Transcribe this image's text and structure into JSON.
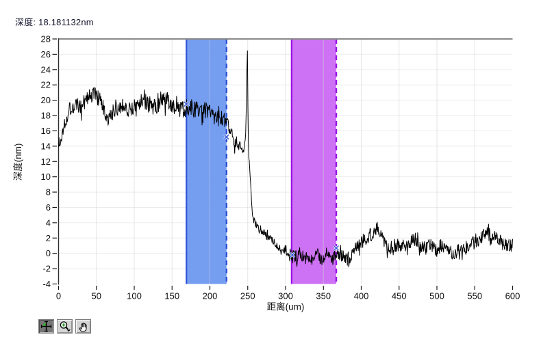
{
  "readout": {
    "label": "深度:",
    "value": "18.181132nm"
  },
  "toolbar": {
    "active_tool": "crosshair-tool",
    "tools": [
      {
        "name": "crosshair-tool"
      },
      {
        "name": "zoom-tool"
      },
      {
        "name": "pan-tool"
      }
    ]
  },
  "chart_data": {
    "type": "line",
    "title": "",
    "xlabel": "距离(um)",
    "ylabel": "深度(nm)",
    "xlim": [
      0,
      600
    ],
    "ylim": [
      -4,
      28
    ],
    "x_tick_step": 50,
    "y_tick_step": 2,
    "grid": true,
    "line_color": "#000000",
    "background": "#ffffff",
    "frame_top_color": "#8a8a8a",
    "frame_left_color": "#2f2f2f",
    "grid_h_color": "#ececec",
    "grid_v_color": "#cfcfcf",
    "tick_color": "#1a1a1a",
    "text_color": "#101010",
    "bands": [
      {
        "name": "blue-band",
        "x1": 169,
        "x2": 222,
        "fill": "#6A97F0",
        "edge": "#2E52D8",
        "left_edge": "solid",
        "right_edge": "dashed"
      },
      {
        "name": "magenta-band",
        "x1": 308,
        "x2": 367,
        "fill": "#CA67F4",
        "edge": "#990FE6",
        "left_edge": "solid",
        "right_edge": "dashed"
      }
    ],
    "cursor_color": "#2E52D8",
    "cursors": [
      {
        "x": 169,
        "y": 19.5
      },
      {
        "x": 222,
        "y": 15.2
      },
      {
        "x": 309,
        "y": -0.2
      },
      {
        "x": 367,
        "y": 0.7
      }
    ],
    "series_spec": {
      "comment": "noisy depth profile; base anchors [x_um, y_nm] + uniform noise",
      "step": 0.6,
      "seed": 1337,
      "spike_prob": 0.07,
      "spike_gain": 1.85,
      "anchors": [
        [
          0,
          14.6
        ],
        [
          2,
          13.9
        ],
        [
          5,
          15.8
        ],
        [
          9,
          17.5
        ],
        [
          14,
          18.8
        ],
        [
          20,
          19.4
        ],
        [
          28,
          19.0
        ],
        [
          35,
          19.8
        ],
        [
          42,
          20.6
        ],
        [
          48,
          20.9
        ],
        [
          52,
          20.3
        ],
        [
          58,
          19.2
        ],
        [
          63,
          17.6
        ],
        [
          66,
          17.0
        ],
        [
          70,
          18.3
        ],
        [
          76,
          19.0
        ],
        [
          82,
          19.4
        ],
        [
          88,
          19.2
        ],
        [
          95,
          18.8
        ],
        [
          100,
          19.0
        ],
        [
          106,
          19.6
        ],
        [
          112,
          19.9
        ],
        [
          118,
          19.6
        ],
        [
          124,
          19.2
        ],
        [
          130,
          19.4
        ],
        [
          136,
          19.7
        ],
        [
          142,
          20.0
        ],
        [
          148,
          19.6
        ],
        [
          154,
          18.9
        ],
        [
          160,
          18.6
        ],
        [
          166,
          18.9
        ],
        [
          172,
          19.2
        ],
        [
          178,
          18.9
        ],
        [
          184,
          18.6
        ],
        [
          190,
          18.9
        ],
        [
          196,
          18.6
        ],
        [
          202,
          18.2
        ],
        [
          208,
          17.9
        ],
        [
          214,
          17.6
        ],
        [
          218,
          17.3
        ],
        [
          222,
          16.7
        ],
        [
          228,
          15.8
        ],
        [
          233,
          14.9
        ],
        [
          238,
          14.2
        ],
        [
          242,
          13.6
        ],
        [
          245,
          13.3
        ],
        [
          247,
          14.5
        ],
        [
          248.5,
          21
        ],
        [
          249.5,
          27.5
        ],
        [
          250.5,
          16
        ],
        [
          252,
          12
        ],
        [
          253.5,
          9.5
        ],
        [
          256,
          5.2
        ],
        [
          260,
          3.8
        ],
        [
          266,
          3.0
        ],
        [
          272,
          2.6
        ],
        [
          280,
          1.9
        ],
        [
          290,
          1.0
        ],
        [
          300,
          0.3
        ],
        [
          306,
          -0.2
        ],
        [
          312,
          -0.5
        ],
        [
          318,
          -0.1
        ],
        [
          324,
          -0.6
        ],
        [
          330,
          -0.2
        ],
        [
          336,
          -0.7
        ],
        [
          342,
          -0.3
        ],
        [
          348,
          -0.6
        ],
        [
          354,
          -0.2
        ],
        [
          360,
          -0.7
        ],
        [
          366,
          -0.4
        ],
        [
          372,
          -0.6
        ],
        [
          378,
          -0.4
        ],
        [
          382,
          -0.8
        ],
        [
          386,
          -0.2
        ],
        [
          390,
          0.3
        ],
        [
          394,
          0.8
        ],
        [
          398,
          1.3
        ],
        [
          402,
          1.6
        ],
        [
          406,
          1.9
        ],
        [
          410,
          2.3
        ],
        [
          414,
          2.6
        ],
        [
          418,
          3.1
        ],
        [
          421,
          3.4
        ],
        [
          424,
          3.0
        ],
        [
          427,
          2.4
        ],
        [
          430,
          1.8
        ],
        [
          434,
          1.2
        ],
        [
          438,
          0.9
        ],
        [
          442,
          0.7
        ],
        [
          446,
          1.1
        ],
        [
          450,
          1.4
        ],
        [
          454,
          1.0
        ],
        [
          458,
          0.7
        ],
        [
          462,
          1.2
        ],
        [
          466,
          1.7
        ],
        [
          470,
          2.0
        ],
        [
          474,
          1.5
        ],
        [
          478,
          0.9
        ],
        [
          482,
          0.5
        ],
        [
          486,
          0.8
        ],
        [
          490,
          1.1
        ],
        [
          494,
          0.7
        ],
        [
          498,
          0.3
        ],
        [
          502,
          0.6
        ],
        [
          506,
          1.0
        ],
        [
          510,
          0.8
        ],
        [
          514,
          0.4
        ],
        [
          518,
          0.1
        ],
        [
          522,
          -0.2
        ],
        [
          526,
          0.2
        ],
        [
          530,
          0.7
        ],
        [
          534,
          0.9
        ],
        [
          538,
          0.6
        ],
        [
          542,
          1.1
        ],
        [
          546,
          1.5
        ],
        [
          550,
          1.7
        ],
        [
          554,
          1.3
        ],
        [
          558,
          1.9
        ],
        [
          562,
          2.4
        ],
        [
          566,
          2.7
        ],
        [
          570,
          2.3
        ],
        [
          574,
          1.8
        ],
        [
          578,
          2.1
        ],
        [
          582,
          1.7
        ],
        [
          586,
          1.3
        ],
        [
          590,
          1.1
        ],
        [
          594,
          1.3
        ],
        [
          600,
          1.0
        ]
      ],
      "noise_segments": [
        {
          "from": 0,
          "to": 233,
          "amp": 1.15
        },
        {
          "from": 233,
          "to": 247,
          "amp": 0.7
        },
        {
          "from": 247,
          "to": 251,
          "amp": 0.25
        },
        {
          "from": 251,
          "to": 258,
          "amp": 0.7
        },
        {
          "from": 258,
          "to": 300,
          "amp": 0.5
        },
        {
          "from": 300,
          "to": 600,
          "amp": 0.95
        }
      ]
    }
  }
}
